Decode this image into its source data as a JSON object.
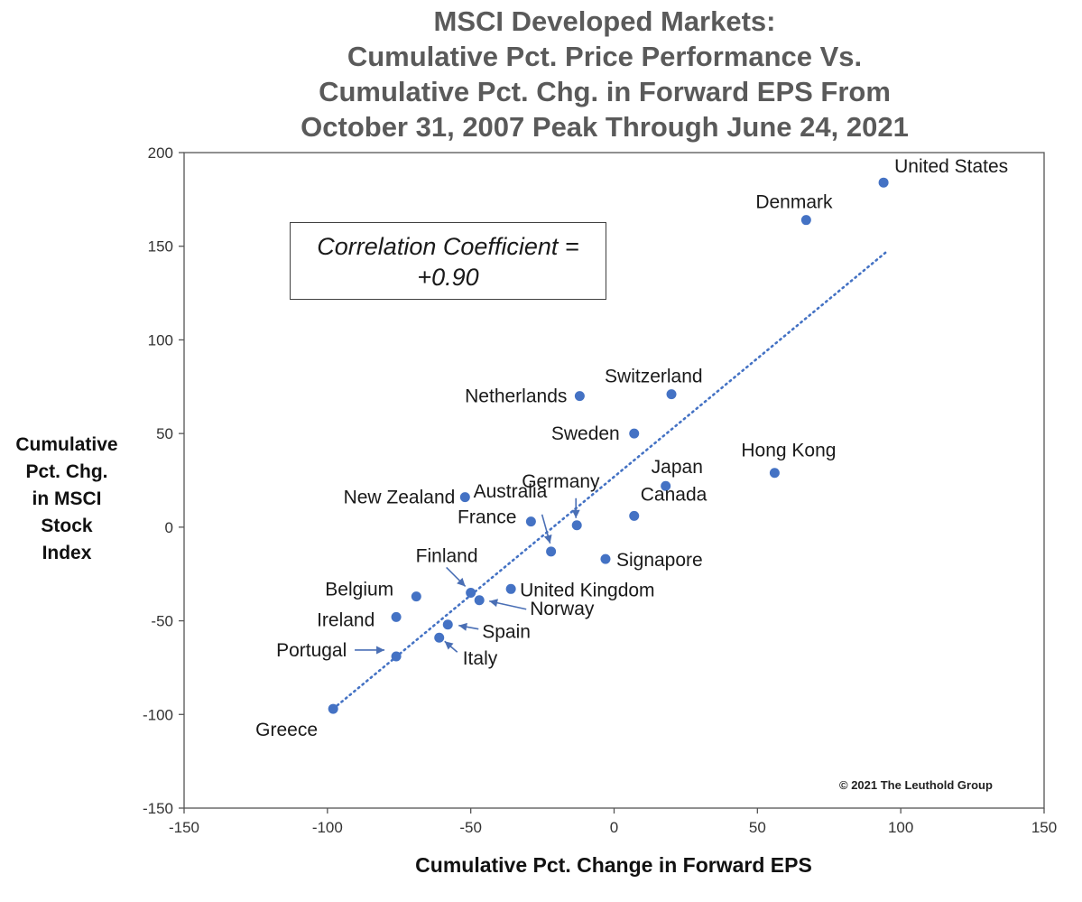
{
  "chart_data": {
    "type": "scatter",
    "title_lines": [
      "MSCI Developed Markets:",
      "Cumulative Pct. Price Performance Vs.",
      "Cumulative Pct. Chg. in Forward EPS From",
      "October 31, 2007 Peak Through June 24, 2021"
    ],
    "xlabel": "Cumulative Pct. Change in Forward EPS",
    "ylabel_lines": [
      "Cumulative",
      "Pct. Chg.",
      "in MSCI",
      "Stock",
      "Index"
    ],
    "xlim": [
      -150,
      150
    ],
    "ylim": [
      -150,
      200
    ],
    "x_ticks": [
      -150,
      -100,
      -50,
      0,
      50,
      100,
      150
    ],
    "y_ticks": [
      -150,
      -100,
      -50,
      0,
      50,
      100,
      150,
      200
    ],
    "x_tick_labels": [
      "-150",
      "-100",
      "-50",
      "0",
      "50",
      "100",
      "150"
    ],
    "y_tick_labels": [
      "-150",
      "-100",
      "-50",
      "0",
      "50",
      "100",
      "150",
      "200"
    ],
    "point_color": "#4472c4",
    "highlight_color": "#d42030",
    "trendline": {
      "x": [
        -98,
        95
      ],
      "y": [
        -97,
        147
      ],
      "style": "dotted"
    },
    "points": [
      {
        "label": "United States",
        "x": 94,
        "y": 184,
        "highlight": true
      },
      {
        "label": "Denmark",
        "x": 67,
        "y": 164
      },
      {
        "label": "Switzerland",
        "x": 20,
        "y": 71
      },
      {
        "label": "Netherlands",
        "x": -12,
        "y": 70
      },
      {
        "label": "Sweden",
        "x": 7,
        "y": 50
      },
      {
        "label": "Hong Kong",
        "x": 56,
        "y": 29
      },
      {
        "label": "Japan",
        "x": 18,
        "y": 22
      },
      {
        "label": "New Zealand",
        "x": -52,
        "y": 16
      },
      {
        "label": "Canada",
        "x": 7,
        "y": 6
      },
      {
        "label": "France",
        "x": -29,
        "y": 3
      },
      {
        "label": "Germany",
        "x": -13,
        "y": 1
      },
      {
        "label": "Australia",
        "x": -22,
        "y": -13
      },
      {
        "label": "Signapore",
        "x": -3,
        "y": -17
      },
      {
        "label": "United Kingdom",
        "x": -36,
        "y": -33
      },
      {
        "label": "Finland",
        "x": -50,
        "y": -35
      },
      {
        "label": "Belgium",
        "x": -69,
        "y": -37
      },
      {
        "label": "Norway",
        "x": -47,
        "y": -39
      },
      {
        "label": "Ireland",
        "x": -76,
        "y": -48
      },
      {
        "label": "Spain",
        "x": -58,
        "y": -52
      },
      {
        "label": "Italy",
        "x": -61,
        "y": -59
      },
      {
        "label": "Portugal",
        "x": -76,
        "y": -69
      },
      {
        "label": "Greece",
        "x": -98,
        "y": -97
      }
    ]
  },
  "annotation": {
    "line1": "Correlation Coefficient =",
    "line2": "+0.90"
  },
  "copyright": "© 2021 The Leuthold Group"
}
